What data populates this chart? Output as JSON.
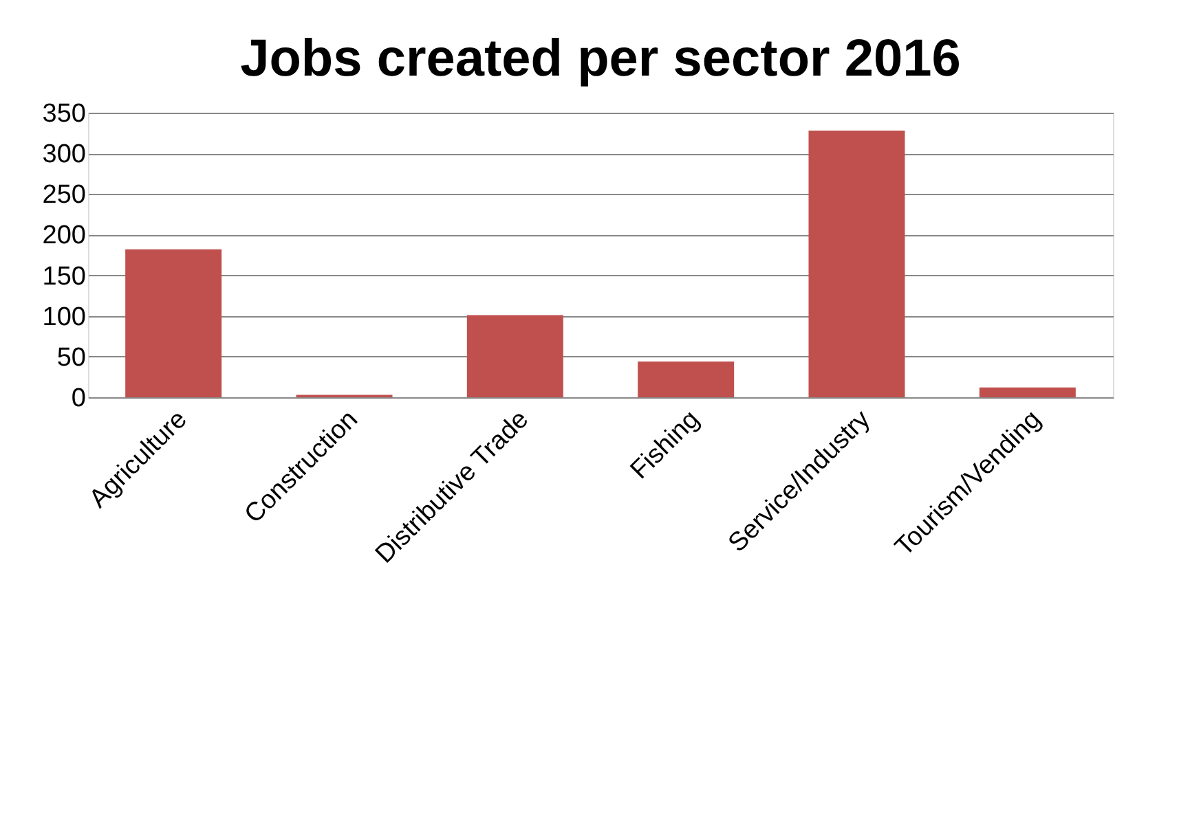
{
  "chart_data": {
    "type": "bar",
    "title": "Jobs created per sector 2016",
    "categories": [
      "Agriculture",
      "Construction",
      "Distributive Trade",
      "Fishing",
      "Service/Industry",
      "Tourism/Vending"
    ],
    "values": [
      182,
      3,
      101,
      44,
      328,
      12
    ],
    "color": "#c0504d",
    "ylim": [
      0,
      350
    ],
    "yticks": [
      0,
      50,
      100,
      150,
      200,
      250,
      300,
      350
    ],
    "grid": "y"
  }
}
